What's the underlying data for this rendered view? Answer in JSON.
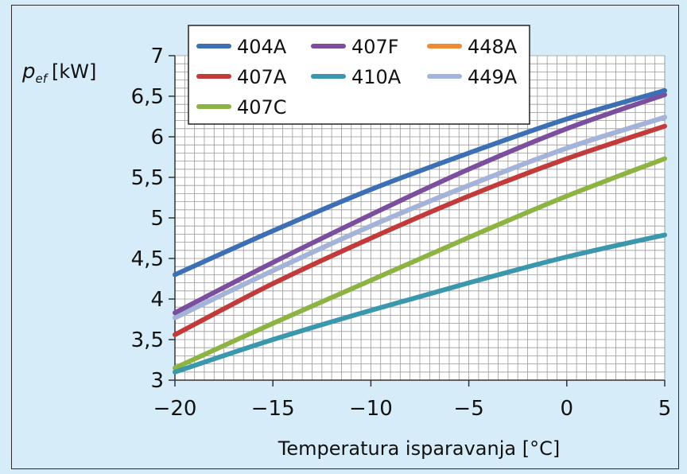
{
  "chart_data": {
    "type": "line",
    "ylabel_symbol": "p",
    "ylabel_subscript": "ef",
    "ylabel_unit": "[kW]",
    "xlabel": "Temperatura isparavanja [°C]",
    "xlim": [
      -20,
      5
    ],
    "ylim": [
      3,
      7
    ],
    "x_ticks": [
      -20,
      -15,
      -10,
      -5,
      0,
      5
    ],
    "x_tick_labels": [
      "−20",
      "−15",
      "−10",
      "−5",
      "0",
      "5"
    ],
    "y_ticks": [
      3,
      3.5,
      4,
      4.5,
      5,
      5.5,
      6,
      6.5,
      7
    ],
    "y_tick_labels": [
      "3",
      "3,5",
      "4",
      "4,5",
      "5",
      "5,5",
      "6",
      "6,5",
      "7"
    ],
    "grid": true,
    "legend_position": "top-left",
    "x": [
      -20,
      -15,
      -10,
      -5,
      0,
      5
    ],
    "series": [
      {
        "name": "404A",
        "color": "#3d6fb4",
        "values": [
          4.3,
          4.84,
          5.35,
          5.8,
          6.22,
          6.57
        ]
      },
      {
        "name": "407A",
        "color": "#c23b3a",
        "values": [
          3.56,
          4.19,
          4.75,
          5.27,
          5.73,
          6.13
        ]
      },
      {
        "name": "407C",
        "color": "#8db442",
        "values": [
          3.15,
          3.7,
          4.23,
          4.76,
          5.27,
          5.73
        ]
      },
      {
        "name": "407F",
        "color": "#7b4f9d",
        "values": [
          3.83,
          4.45,
          5.04,
          5.6,
          6.1,
          6.52
        ]
      },
      {
        "name": "410A",
        "color": "#3a97ad",
        "values": [
          3.1,
          3.5,
          3.86,
          4.2,
          4.52,
          4.79
        ]
      },
      {
        "name": "448A",
        "color": "#ef8b34",
        "values": [
          3.77,
          4.35,
          4.9,
          5.4,
          5.86,
          6.24
        ]
      },
      {
        "name": "449A",
        "color": "#a3b4dc",
        "values": [
          3.77,
          4.35,
          4.9,
          5.4,
          5.86,
          6.24
        ]
      }
    ],
    "legend_order": [
      "404A",
      "407F",
      "448A",
      "407A",
      "410A",
      "449A",
      "407C"
    ]
  }
}
